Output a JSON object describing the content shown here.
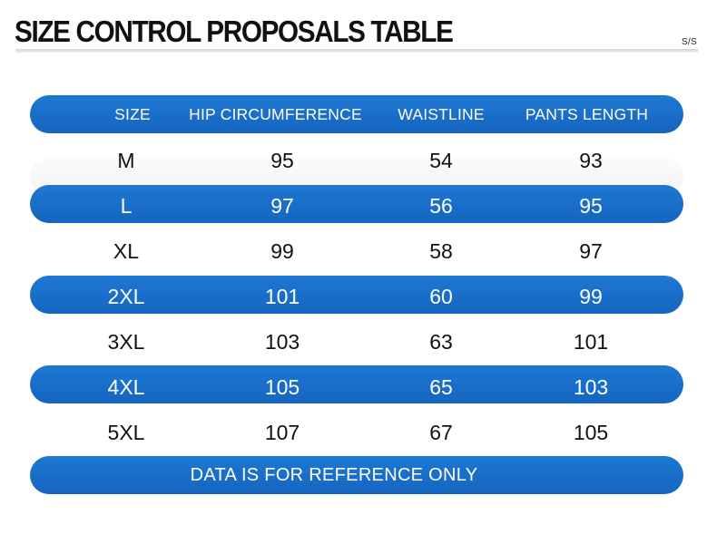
{
  "header": {
    "title": "SIZE CONTROL PROPOSALS TABLE",
    "season": "S/S"
  },
  "table": {
    "columns": [
      "SIZE",
      "HIP CIRCUMFERENCE",
      "WAISTLINE",
      "PANTS LENGTH"
    ],
    "rows": [
      [
        "M",
        "95",
        "54",
        "93"
      ],
      [
        "L",
        "97",
        "56",
        "95"
      ],
      [
        "XL",
        "99",
        "58",
        "97"
      ],
      [
        "2XL",
        "101",
        "60",
        "99"
      ],
      [
        "3XL",
        "103",
        "63",
        "101"
      ],
      [
        "4XL",
        "105",
        "65",
        "103"
      ],
      [
        "5XL",
        "107",
        "67",
        "105"
      ]
    ]
  },
  "footer": {
    "note": "DATA IS FOR REFERENCE ONLY"
  },
  "colors": {
    "band_blue": "#1b70cc",
    "text_dark": "#111111",
    "text_light": "#ffffff"
  }
}
